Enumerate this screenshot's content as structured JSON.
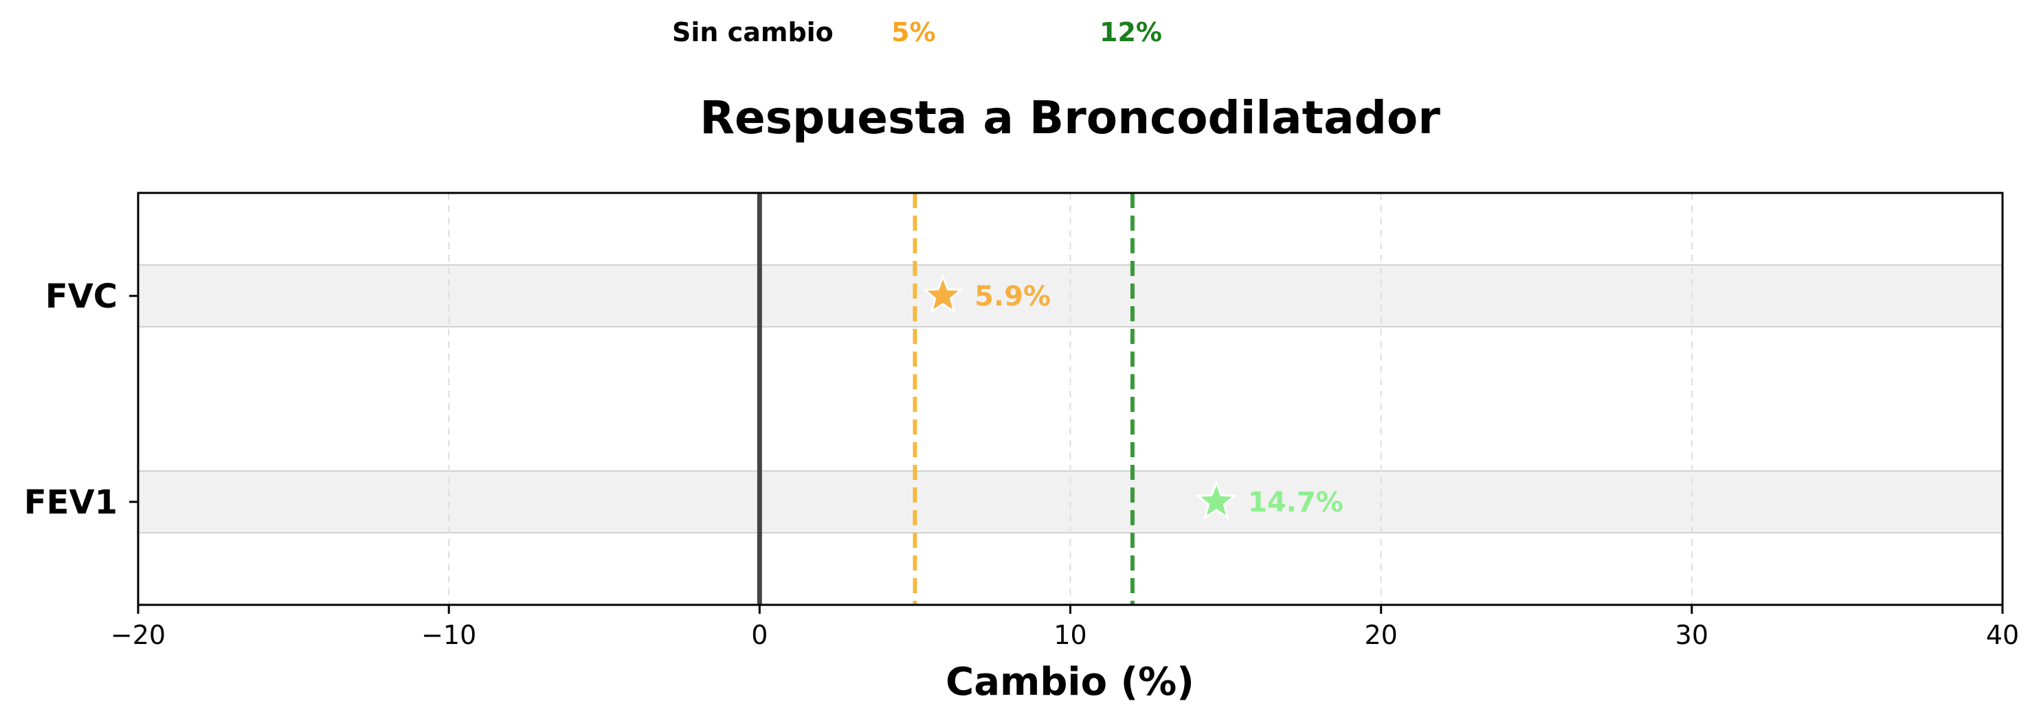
{
  "legend": {
    "items": [
      {
        "label": "Sin cambio",
        "color": "#000000"
      },
      {
        "label": "5%",
        "color": "#f5a623"
      },
      {
        "label": "12%",
        "color": "#1a7f1a"
      }
    ]
  },
  "chart_data": {
    "type": "scatter",
    "title": "Respuesta a Broncodilatador",
    "xlabel": "Cambio (%)",
    "ylabel": "",
    "xlim": [
      -20,
      40
    ],
    "xticks": [
      -20,
      -10,
      0,
      10,
      20,
      30,
      40
    ],
    "xtick_labels": [
      "−20",
      "−10",
      "0",
      "10",
      "20",
      "30",
      "40"
    ],
    "categories": [
      "FVC",
      "FEV1"
    ],
    "values": [
      5.9,
      14.7
    ],
    "value_labels": [
      "5.9%",
      "14.7%"
    ],
    "point_colors": [
      "#f5b041",
      "#90ee90"
    ],
    "marker": "star-icon",
    "reference_lines": [
      {
        "x": 0,
        "color": "#444444",
        "style": "solid"
      },
      {
        "x": 5,
        "color": "#f5b941",
        "style": "dashed"
      },
      {
        "x": 12,
        "color": "#3a9a3a",
        "style": "dashed"
      }
    ],
    "grid": "x-dashed",
    "legend_placement": "top-left"
  }
}
